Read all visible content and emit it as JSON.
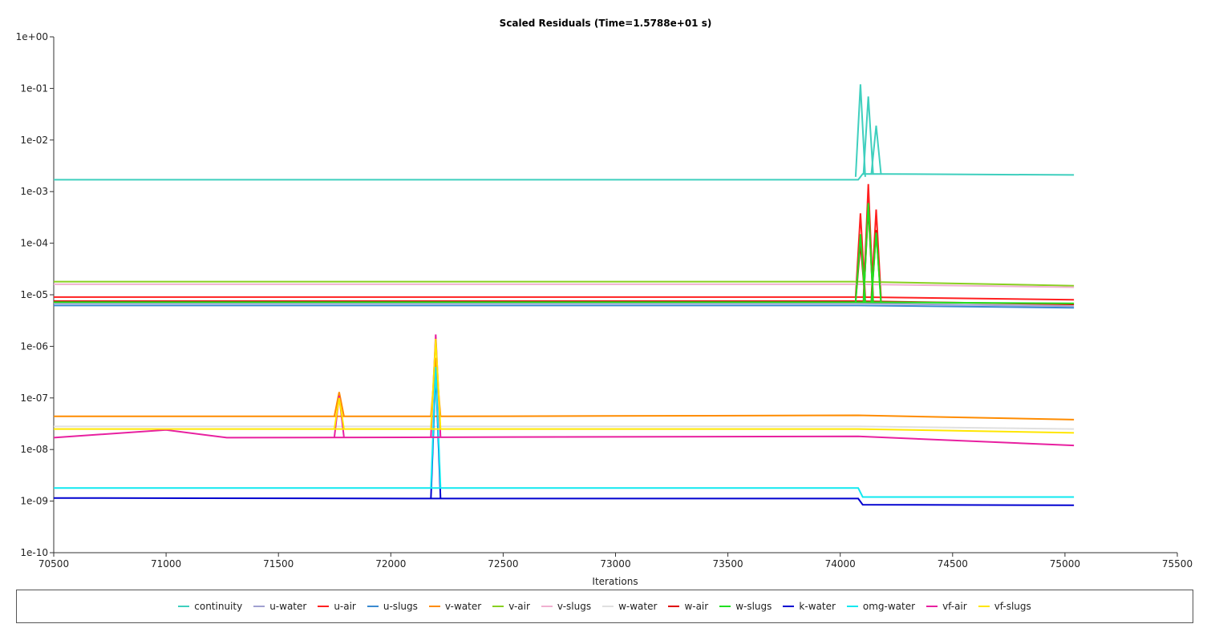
{
  "chart_data": {
    "type": "line",
    "title": "Scaled Residuals (Time=1.5788e+01 s)",
    "xlabel": "Iterations",
    "ylabel": "",
    "xlim": [
      70500,
      75500
    ],
    "ylim": [
      1e-10,
      1
    ],
    "yscale": "log",
    "grid": false,
    "legend_placement": "bottom",
    "x_ticks": [
      "70500",
      "71000",
      "71500",
      "72000",
      "72500",
      "73000",
      "73500",
      "74000",
      "74500",
      "75000",
      "75500"
    ],
    "y_ticks": [
      "1e+00",
      "1e-01",
      "1e-02",
      "1e-03",
      "1e-04",
      "1e-05",
      "1e-06",
      "1e-07",
      "1e-08",
      "1e-09",
      "1e-10"
    ],
    "series": [
      {
        "name": "continuity",
        "color": "#3fcfbe",
        "baseline": [
          [
            70500,
            0.0017
          ],
          [
            72200,
            0.0017
          ],
          [
            74080,
            0.0017
          ],
          [
            74100,
            0.0022
          ],
          [
            75040,
            0.0021
          ]
        ],
        "spikes": [
          [
            74090,
            0.12
          ],
          [
            74125,
            0.07
          ],
          [
            74160,
            0.019
          ]
        ]
      },
      {
        "name": "u-water",
        "color": "#a0a0d0",
        "baseline": [
          [
            70500,
            6.8e-06
          ],
          [
            74080,
            6.8e-06
          ],
          [
            75040,
            6e-06
          ]
        ],
        "spikes": []
      },
      {
        "name": "u-air",
        "color": "#ff2020",
        "baseline": [
          [
            70500,
            9e-06
          ],
          [
            74080,
            9e-06
          ],
          [
            75040,
            8e-06
          ]
        ],
        "spikes": [
          [
            74090,
            0.00038
          ],
          [
            74125,
            0.0014
          ],
          [
            74160,
            0.00045
          ]
        ]
      },
      {
        "name": "u-slugs",
        "color": "#3a8ad0",
        "baseline": [
          [
            70500,
            6.2e-06
          ],
          [
            74080,
            6.2e-06
          ],
          [
            75040,
            5.6e-06
          ]
        ],
        "spikes": []
      },
      {
        "name": "v-water",
        "color": "#ff8c00",
        "baseline": [
          [
            70500,
            4.4e-08
          ],
          [
            72200,
            4.4e-08
          ],
          [
            74080,
            4.6e-08
          ],
          [
            75040,
            3.8e-08
          ]
        ],
        "spikes": [
          [
            71770,
            1.3e-07
          ],
          [
            72200,
            6e-07
          ]
        ]
      },
      {
        "name": "v-air",
        "color": "#88d020",
        "baseline": [
          [
            70500,
            1.8e-05
          ],
          [
            74080,
            1.8e-05
          ],
          [
            75040,
            1.5e-05
          ]
        ],
        "spikes": []
      },
      {
        "name": "v-slugs",
        "color": "#f0b0d0",
        "baseline": [
          [
            70500,
            1.6e-05
          ],
          [
            74080,
            1.6e-05
          ],
          [
            75040,
            1.4e-05
          ]
        ],
        "spikes": []
      },
      {
        "name": "w-water",
        "color": "#e0e0e0",
        "baseline": [
          [
            70500,
            2.8e-08
          ],
          [
            74080,
            2.8e-08
          ],
          [
            75040,
            2.5e-08
          ]
        ],
        "spikes": []
      },
      {
        "name": "w-air",
        "color": "#e00000",
        "baseline": [
          [
            70500,
            7.5e-06
          ],
          [
            74080,
            7.5e-06
          ],
          [
            75040,
            6.5e-06
          ]
        ],
        "spikes": [
          [
            74090,
            0.0001
          ],
          [
            74125,
            0.0005
          ],
          [
            74160,
            0.00018
          ]
        ]
      },
      {
        "name": "w-slugs",
        "color": "#20e020",
        "baseline": [
          [
            70500,
            7.2e-06
          ],
          [
            74080,
            7.2e-06
          ],
          [
            75040,
            6.8e-06
          ]
        ],
        "spikes": [
          [
            74090,
            0.00015
          ],
          [
            74125,
            0.0006
          ],
          [
            74160,
            0.00016
          ]
        ]
      },
      {
        "name": "k-water",
        "color": "#0000d0",
        "baseline": [
          [
            70500,
            1.15e-09
          ],
          [
            72200,
            1.12e-09
          ],
          [
            74080,
            1.12e-09
          ],
          [
            74100,
            8.5e-10
          ],
          [
            75040,
            8.3e-10
          ]
        ],
        "spikes": [
          [
            72200,
            3.5e-07
          ]
        ]
      },
      {
        "name": "omg-water",
        "color": "#10e8f0",
        "baseline": [
          [
            70500,
            1.8e-09
          ],
          [
            72200,
            1.8e-09
          ],
          [
            74080,
            1.8e-09
          ],
          [
            74100,
            1.2e-09
          ],
          [
            75040,
            1.2e-09
          ]
        ],
        "spikes": [
          [
            72200,
            4e-07
          ]
        ]
      },
      {
        "name": "vf-air",
        "color": "#e820a0",
        "baseline": [
          [
            70500,
            1.7e-08
          ],
          [
            71000,
            2.4e-08
          ],
          [
            71270,
            1.7e-08
          ],
          [
            74080,
            1.8e-08
          ],
          [
            75040,
            1.2e-08
          ]
        ],
        "spikes": [
          [
            71770,
            1.1e-07
          ],
          [
            72200,
            1.7e-06
          ]
        ]
      },
      {
        "name": "vf-slugs",
        "color": "#ffe600",
        "baseline": [
          [
            70500,
            2.5e-08
          ],
          [
            74080,
            2.5e-08
          ],
          [
            75040,
            2.1e-08
          ]
        ],
        "spikes": [
          [
            71770,
            1e-07
          ],
          [
            72200,
            1.4e-06
          ]
        ]
      }
    ]
  }
}
